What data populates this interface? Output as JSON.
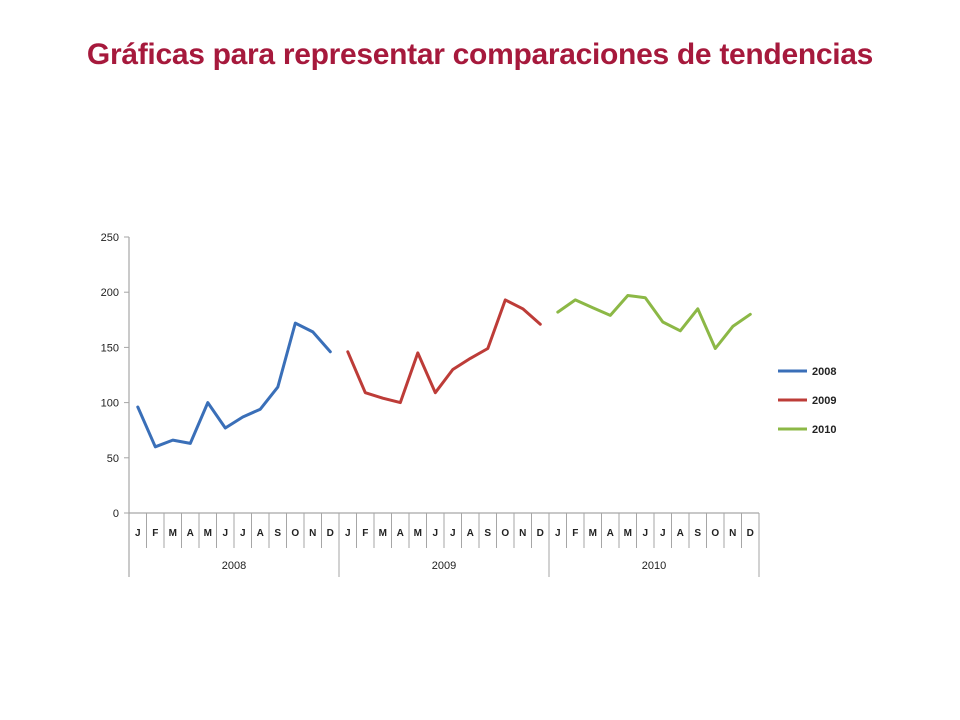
{
  "slide": {
    "title": "Gráficas para representar comparaciones de tendencias"
  },
  "chart_data": {
    "type": "line",
    "title": "",
    "xlabel": "",
    "ylabel": "",
    "ylim": [
      0,
      250
    ],
    "yticks": [
      0,
      50,
      100,
      150,
      200,
      250
    ],
    "grid": false,
    "legend_position": "right",
    "months": [
      "J",
      "F",
      "M",
      "A",
      "M",
      "J",
      "J",
      "A",
      "S",
      "O",
      "N",
      "D"
    ],
    "groups": [
      "2008",
      "2009",
      "2010"
    ],
    "series": [
      {
        "name": "2008",
        "color": "#3a6fb8",
        "group_index": 0,
        "values": [
          96,
          60,
          66,
          63,
          100,
          77,
          87,
          94,
          114,
          172,
          164,
          146
        ]
      },
      {
        "name": "2009",
        "color": "#bd3c38",
        "group_index": 1,
        "values": [
          146,
          109,
          104,
          100,
          145,
          109,
          130,
          140,
          149,
          193,
          185,
          171
        ]
      },
      {
        "name": "2010",
        "color": "#8cb846",
        "group_index": 2,
        "values": [
          182,
          193,
          186,
          179,
          197,
          195,
          173,
          165,
          185,
          149,
          169,
          180
        ]
      }
    ]
  }
}
